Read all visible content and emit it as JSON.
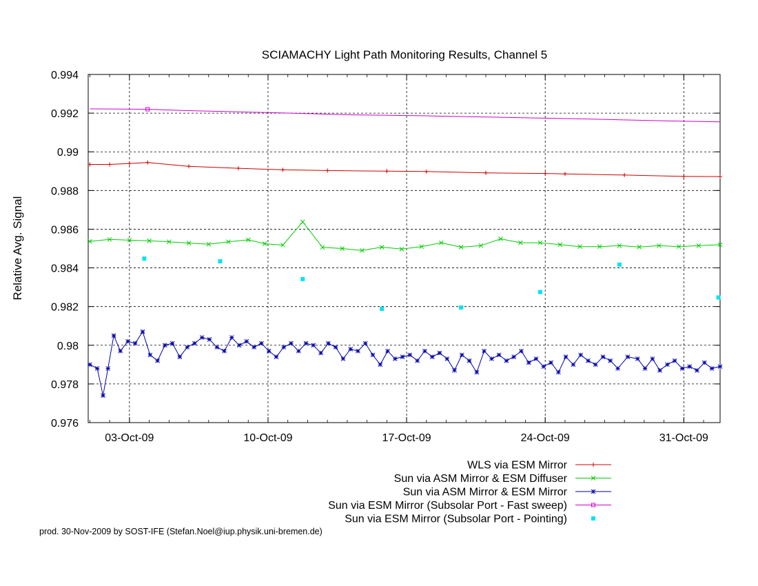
{
  "chart_data": {
    "type": "line",
    "title": "SCIAMACHY Light Path Monitoring Results, Channel 5",
    "xlabel": "",
    "ylabel": "Relative Avg. Signal",
    "x_axis": {
      "type": "date",
      "range": [
        "2009-09-30T22:00",
        "2009-11-01T20:00"
      ],
      "tick_dates": [
        "2009-10-03",
        "2009-10-10",
        "2009-10-17",
        "2009-10-24",
        "2009-10-31"
      ],
      "tick_labels": [
        "03-Oct-09",
        "10-Oct-09",
        "17-Oct-09",
        "24-Oct-09",
        "31-Oct-09"
      ]
    },
    "ylim": [
      0.976,
      0.994
    ],
    "yticks": [
      0.976,
      0.978,
      0.98,
      0.982,
      0.984,
      0.986,
      0.988,
      0.99,
      0.992,
      0.994
    ],
    "ytick_labels": [
      "0.976",
      "0.978",
      "0.98",
      "0.982",
      "0.984",
      "0.986",
      "0.988",
      "0.99",
      "0.992",
      "0.994"
    ],
    "grid": true,
    "legend_position": "bottom-right, below plot",
    "series": [
      {
        "name": "WLS via ESM Mirror",
        "color": "#cc0000",
        "style": "line+plus",
        "points": [
          [
            "2009-10-01T00:00",
            0.98935
          ],
          [
            "2009-10-02T00:00",
            0.98935
          ],
          [
            "2009-10-03T00:00",
            0.9894
          ],
          [
            "2009-10-03T22:00",
            0.98945
          ],
          [
            "2009-10-06T00:00",
            0.98925
          ],
          [
            "2009-10-08T12:00",
            0.98915
          ],
          [
            "2009-10-10T18:00",
            0.98907
          ],
          [
            "2009-10-13T00:00",
            0.98903
          ],
          [
            "2009-10-16T00:00",
            0.989
          ],
          [
            "2009-10-18T00:00",
            0.98898
          ],
          [
            "2009-10-21T00:00",
            0.98891
          ],
          [
            "2009-10-24T00:00",
            0.98888
          ],
          [
            "2009-10-25T00:00",
            0.98886
          ],
          [
            "2009-10-28T00:00",
            0.9888
          ],
          [
            "2009-10-31T00:00",
            0.98873
          ],
          [
            "2009-11-01T20:00",
            0.98872
          ]
        ]
      },
      {
        "name": "Sun via ASM Mirror & ESM Diffuser",
        "color": "#00cc00",
        "style": "line+cross",
        "points": [
          [
            "2009-10-01T00:00",
            0.98537
          ],
          [
            "2009-10-02T00:00",
            0.98547
          ],
          [
            "2009-10-03T00:00",
            0.98543
          ],
          [
            "2009-10-04T00:00",
            0.9854
          ],
          [
            "2009-10-05T00:00",
            0.98535
          ],
          [
            "2009-10-06T00:00",
            0.98528
          ],
          [
            "2009-10-07T00:00",
            0.98522
          ],
          [
            "2009-10-08T00:00",
            0.98535
          ],
          [
            "2009-10-09T00:00",
            0.98545
          ],
          [
            "2009-10-09T20:00",
            0.98525
          ],
          [
            "2009-10-10T18:00",
            0.98518
          ],
          [
            "2009-10-11T18:00",
            0.98638
          ],
          [
            "2009-10-12T18:00",
            0.98506
          ],
          [
            "2009-10-13T18:00",
            0.985
          ],
          [
            "2009-10-14T18:00",
            0.9849
          ],
          [
            "2009-10-15T18:00",
            0.98507
          ],
          [
            "2009-10-16T18:00",
            0.98497
          ],
          [
            "2009-10-17T18:00",
            0.9851
          ],
          [
            "2009-10-18T18:00",
            0.9853
          ],
          [
            "2009-10-19T18:00",
            0.98507
          ],
          [
            "2009-10-20T18:00",
            0.98515
          ],
          [
            "2009-10-21T18:00",
            0.9855
          ],
          [
            "2009-10-22T18:00",
            0.9853
          ],
          [
            "2009-10-23T18:00",
            0.9853
          ],
          [
            "2009-10-24T18:00",
            0.9852
          ],
          [
            "2009-10-25T18:00",
            0.9851
          ],
          [
            "2009-10-26T18:00",
            0.9851
          ],
          [
            "2009-10-27T18:00",
            0.98515
          ],
          [
            "2009-10-28T18:00",
            0.98508
          ],
          [
            "2009-10-29T18:00",
            0.98515
          ],
          [
            "2009-10-30T18:00",
            0.9851
          ],
          [
            "2009-10-31T18:00",
            0.98515
          ],
          [
            "2009-11-01T20:00",
            0.9852
          ]
        ]
      },
      {
        "name": "Sun via ASM Mirror & ESM Mirror",
        "color": "#0000aa",
        "style": "line+star",
        "points": [
          [
            "2009-10-01T00:00",
            0.979
          ],
          [
            "2009-10-01T09:00",
            0.9788
          ],
          [
            "2009-10-01T16:00",
            0.9774
          ],
          [
            "2009-10-01T22:00",
            0.9788
          ],
          [
            "2009-10-02T05:00",
            0.9805
          ],
          [
            "2009-10-02T13:00",
            0.9797
          ],
          [
            "2009-10-02T22:00",
            0.9802
          ],
          [
            "2009-10-03T07:00",
            0.9801
          ],
          [
            "2009-10-03T16:00",
            0.9807
          ],
          [
            "2009-10-04T01:00",
            0.9795
          ],
          [
            "2009-10-04T10:00",
            0.9792
          ],
          [
            "2009-10-04T19:00",
            0.98
          ],
          [
            "2009-10-05T04:00",
            0.9801
          ],
          [
            "2009-10-05T13:00",
            0.9794
          ],
          [
            "2009-10-05T22:00",
            0.9799
          ],
          [
            "2009-10-06T07:00",
            0.9801
          ],
          [
            "2009-10-06T16:00",
            0.9804
          ],
          [
            "2009-10-07T01:00",
            0.9803
          ],
          [
            "2009-10-07T10:00",
            0.9799
          ],
          [
            "2009-10-07T19:00",
            0.9797
          ],
          [
            "2009-10-08T04:00",
            0.9804
          ],
          [
            "2009-10-08T13:00",
            0.98
          ],
          [
            "2009-10-08T22:00",
            0.9802
          ],
          [
            "2009-10-09T07:00",
            0.9799
          ],
          [
            "2009-10-09T16:00",
            0.9801
          ],
          [
            "2009-10-10T01:00",
            0.9797
          ],
          [
            "2009-10-10T10:00",
            0.9794
          ],
          [
            "2009-10-10T19:00",
            0.9799
          ],
          [
            "2009-10-11T04:00",
            0.9801
          ],
          [
            "2009-10-11T13:00",
            0.9797
          ],
          [
            "2009-10-11T22:00",
            0.9801
          ],
          [
            "2009-10-12T07:00",
            0.98
          ],
          [
            "2009-10-12T16:00",
            0.9796
          ],
          [
            "2009-10-13T01:00",
            0.9801
          ],
          [
            "2009-10-13T10:00",
            0.9799
          ],
          [
            "2009-10-13T19:00",
            0.9793
          ],
          [
            "2009-10-14T04:00",
            0.9798
          ],
          [
            "2009-10-14T13:00",
            0.9797
          ],
          [
            "2009-10-14T22:00",
            0.9801
          ],
          [
            "2009-10-15T07:00",
            0.9795
          ],
          [
            "2009-10-15T16:00",
            0.979
          ],
          [
            "2009-10-16T01:00",
            0.9797
          ],
          [
            "2009-10-16T10:00",
            0.9793
          ],
          [
            "2009-10-16T19:00",
            0.9794
          ],
          [
            "2009-10-17T04:00",
            0.9795
          ],
          [
            "2009-10-17T13:00",
            0.9792
          ],
          [
            "2009-10-17T22:00",
            0.9797
          ],
          [
            "2009-10-18T07:00",
            0.9794
          ],
          [
            "2009-10-18T16:00",
            0.9796
          ],
          [
            "2009-10-19T01:00",
            0.9793
          ],
          [
            "2009-10-19T10:00",
            0.9787
          ],
          [
            "2009-10-19T19:00",
            0.9795
          ],
          [
            "2009-10-20T04:00",
            0.9792
          ],
          [
            "2009-10-20T13:00",
            0.9786
          ],
          [
            "2009-10-20T22:00",
            0.9797
          ],
          [
            "2009-10-21T07:00",
            0.9793
          ],
          [
            "2009-10-21T16:00",
            0.9795
          ],
          [
            "2009-10-22T01:00",
            0.9792
          ],
          [
            "2009-10-22T10:00",
            0.9794
          ],
          [
            "2009-10-22T19:00",
            0.9797
          ],
          [
            "2009-10-23T04:00",
            0.9791
          ],
          [
            "2009-10-23T13:00",
            0.9793
          ],
          [
            "2009-10-23T22:00",
            0.9789
          ],
          [
            "2009-10-24T07:00",
            0.9791
          ],
          [
            "2009-10-24T16:00",
            0.9786
          ],
          [
            "2009-10-25T01:00",
            0.9794
          ],
          [
            "2009-10-25T10:00",
            0.979
          ],
          [
            "2009-10-25T19:00",
            0.9795
          ],
          [
            "2009-10-26T04:00",
            0.9792
          ],
          [
            "2009-10-26T13:00",
            0.979
          ],
          [
            "2009-10-26T22:00",
            0.9794
          ],
          [
            "2009-10-27T07:00",
            0.9792
          ],
          [
            "2009-10-27T16:00",
            0.9788
          ],
          [
            "2009-10-28T04:00",
            0.9794
          ],
          [
            "2009-10-28T16:00",
            0.9793
          ],
          [
            "2009-10-29T01:00",
            0.9788
          ],
          [
            "2009-10-29T10:00",
            0.9793
          ],
          [
            "2009-10-29T19:00",
            0.9787
          ],
          [
            "2009-10-30T04:00",
            0.979
          ],
          [
            "2009-10-30T13:00",
            0.9792
          ],
          [
            "2009-10-30T22:00",
            0.9788
          ],
          [
            "2009-10-31T07:00",
            0.9789
          ],
          [
            "2009-10-31T16:00",
            0.9787
          ],
          [
            "2009-11-01T01:00",
            0.9791
          ],
          [
            "2009-11-01T10:00",
            0.9788
          ],
          [
            "2009-11-01T20:00",
            0.9789
          ]
        ]
      },
      {
        "name": "Sun via ESM Mirror (Subsolar Port - Fast sweep)",
        "color": "#cc00cc",
        "style": "line+box",
        "points": [
          [
            "2009-10-01T00:00",
            0.99222
          ],
          [
            "2009-10-03T22:00",
            0.9922
          ],
          [
            "2009-10-06T00:00",
            0.99213
          ],
          [
            "2009-10-10T00:00",
            0.99203
          ],
          [
            "2009-10-14T00:00",
            0.99192
          ],
          [
            "2009-10-18T00:00",
            0.99186
          ],
          [
            "2009-10-22T00:00",
            0.99178
          ],
          [
            "2009-10-26T00:00",
            0.9917
          ],
          [
            "2009-10-30T00:00",
            0.9916
          ],
          [
            "2009-11-01T20:00",
            0.99155
          ]
        ],
        "markers": [
          [
            "2009-10-03T22:00",
            0.9922
          ]
        ]
      },
      {
        "name": "Sun via ESM Mirror (Subsolar Port - Pointing)",
        "color": "#00e5ee",
        "style": "points",
        "points": [
          [
            "2009-10-03T18:00",
            0.98448
          ],
          [
            "2009-10-07T14:00",
            0.98434
          ],
          [
            "2009-10-11T18:00",
            0.98342
          ],
          [
            "2009-10-15T18:00",
            0.98188
          ],
          [
            "2009-10-19T18:00",
            0.98195
          ],
          [
            "2009-10-23T18:00",
            0.98275
          ],
          [
            "2009-10-27T18:00",
            0.98417
          ],
          [
            "2009-11-01T18:00",
            0.98247
          ]
        ]
      }
    ]
  },
  "footer": "prod. 30-Nov-2009 by SOST-IFE (Stefan.Noel@iup.physik.uni-bremen.de)"
}
